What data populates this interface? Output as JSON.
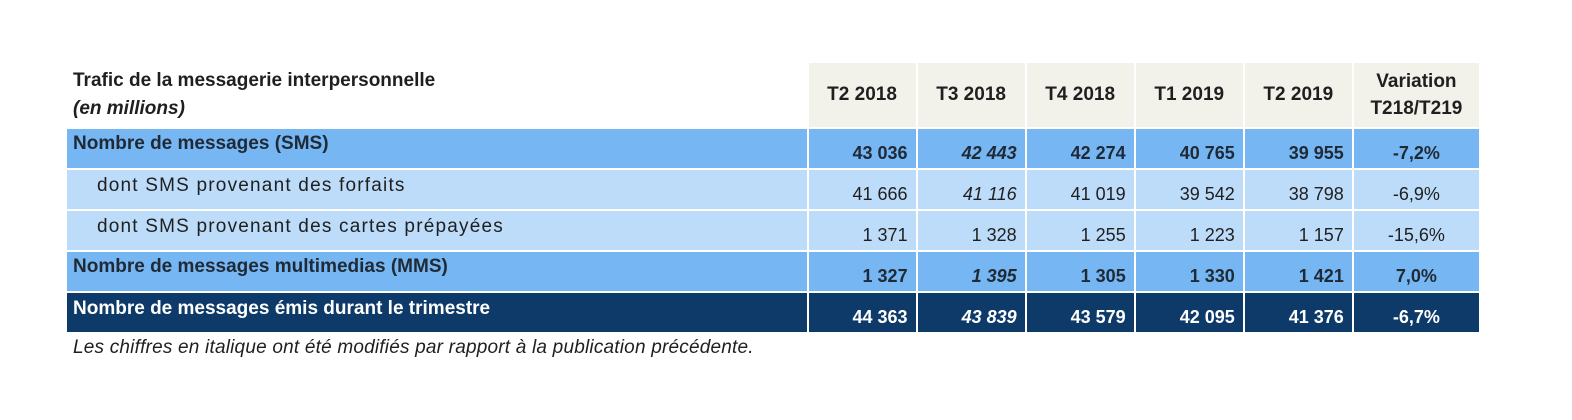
{
  "table": {
    "title": "Trafic de la messagerie interpersonnelle",
    "unit": "(en millions)",
    "columns": [
      "T2 2018",
      "T3 2018",
      "T4 2018",
      "T1 2019",
      "T2 2019"
    ],
    "variation_header": {
      "line1": "Variation",
      "line2": "T218/T219"
    },
    "rows": [
      {
        "label": "Nombre de messages (SMS)",
        "values": [
          "43 036",
          "42 443",
          "42 274",
          "40 765",
          "39 955"
        ],
        "variation": "-7,2%"
      },
      {
        "label": "dont SMS provenant des forfaits",
        "values": [
          "41 666",
          "41 116",
          "41 019",
          "39 542",
          "38 798"
        ],
        "variation": "-6,9%"
      },
      {
        "label": "dont SMS provenant des cartes prépayées",
        "values": [
          "1 371",
          "1 328",
          "1 255",
          "1 223",
          "1 157"
        ],
        "variation": "-15,6%"
      },
      {
        "label": "Nombre de messages multimedias (MMS)",
        "values": [
          "1 327",
          "1 395",
          "1 305",
          "1 330",
          "1 421"
        ],
        "variation": "7,0%"
      },
      {
        "label": "Nombre de messages émis durant le trimestre",
        "values": [
          "44 363",
          "43 839",
          "43 579",
          "42 095",
          "41 376"
        ],
        "variation": "-6,7%"
      }
    ]
  },
  "footnote": "Les chiffres en italique ont été modifiés par rapport à la publication précédente.",
  "colors": {
    "header_bg": "#f2f1ea",
    "main_row_bg": "#76b6f2",
    "sub_row_bg": "#bcdcf9",
    "total_row_bg": "#0d3a68",
    "total_row_text": "#ffffff"
  }
}
